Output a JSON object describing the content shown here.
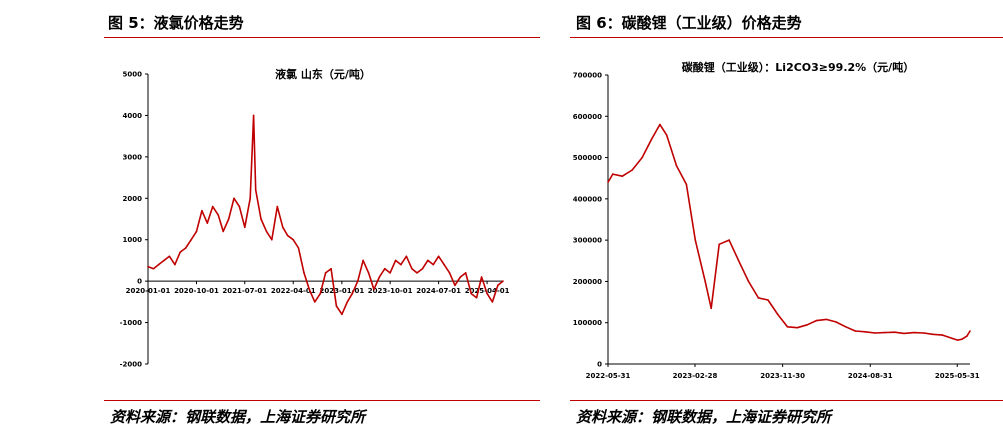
{
  "left": {
    "figure_title": "图 5：液氯价格走势",
    "source": "资料来源：钢联数据，上海证券研究所"
  },
  "right": {
    "figure_title": "图 6：碳酸锂（工业级）价格走势",
    "source": "资料来源：钢联数据，上海证券研究所"
  },
  "colors": {
    "line": "#c00000",
    "rule": "#c00000",
    "axis": "#000000"
  },
  "chart_data": [
    {
      "type": "line",
      "title": "液氯 山东（元/吨）",
      "xlabel": "",
      "ylabel": "",
      "ylim": [
        -2000,
        5000
      ],
      "yticks": [
        -2000,
        -1000,
        0,
        1000,
        2000,
        3000,
        4000,
        5000
      ],
      "ytick_labels": [
        "-2000",
        "-1000",
        "0",
        "1000",
        "2000",
        "3000",
        "4000",
        "5000"
      ],
      "xlim": [
        "2020-01-01",
        "2025-06-30"
      ],
      "xticks": [
        "2020-01-01",
        "2020-10-01",
        "2021-07-01",
        "2022-04-01",
        "2023-01-01",
        "2023-10-01",
        "2024-07-01",
        "2025-04-01"
      ],
      "xtick_labels": [
        "2020-01-01",
        "2020-10-01",
        "2021-07-01",
        "2022-04-01",
        "2023-01-01",
        "2023-10-01",
        "2024-07-01",
        "2025-04-01"
      ],
      "grid": false,
      "series": [
        {
          "x": [
            "2020-01-01",
            "2020-02-01",
            "2020-03-01",
            "2020-04-01",
            "2020-05-01",
            "2020-06-01",
            "2020-07-01",
            "2020-08-01",
            "2020-09-01",
            "2020-10-01",
            "2020-11-01",
            "2020-12-01",
            "2021-01-01",
            "2021-02-01",
            "2021-03-01",
            "2021-04-01",
            "2021-05-01",
            "2021-06-01",
            "2021-07-01",
            "2021-08-01",
            "2021-08-20",
            "2021-09-01",
            "2021-10-01",
            "2021-11-01",
            "2021-12-01",
            "2022-01-01",
            "2022-02-01",
            "2022-03-01",
            "2022-04-01",
            "2022-05-01",
            "2022-06-01",
            "2022-07-01",
            "2022-08-01",
            "2022-09-01",
            "2022-10-01",
            "2022-11-01",
            "2022-12-01",
            "2023-01-01",
            "2023-02-01",
            "2023-03-01",
            "2023-04-01",
            "2023-05-01",
            "2023-06-01",
            "2023-07-01",
            "2023-08-01",
            "2023-09-01",
            "2023-10-01",
            "2023-11-01",
            "2023-12-01",
            "2024-01-01",
            "2024-02-01",
            "2024-03-01",
            "2024-04-01",
            "2024-05-01",
            "2024-06-01",
            "2024-07-01",
            "2024-08-01",
            "2024-09-01",
            "2024-10-01",
            "2024-11-01",
            "2024-12-01",
            "2025-01-01",
            "2025-02-01",
            "2025-03-01",
            "2025-04-01",
            "2025-05-01",
            "2025-06-01",
            "2025-06-30"
          ],
          "values": [
            350,
            300,
            400,
            500,
            600,
            400,
            700,
            800,
            1000,
            1200,
            1700,
            1400,
            1800,
            1600,
            1200,
            1500,
            2000,
            1800,
            1300,
            2000,
            4000,
            2200,
            1500,
            1200,
            1000,
            1800,
            1300,
            1100,
            1000,
            800,
            200,
            -200,
            -500,
            -300,
            200,
            300,
            -600,
            -800,
            -500,
            -300,
            0,
            500,
            200,
            -200,
            100,
            300,
            200,
            500,
            400,
            600,
            300,
            200,
            300,
            500,
            400,
            600,
            400,
            200,
            -100,
            100,
            200,
            -300,
            -400,
            100,
            -300,
            -500,
            -100,
            0
          ]
        }
      ]
    },
    {
      "type": "line",
      "title": "碳酸锂（工业级）：Li2CO3≥99.2%（元/吨）",
      "xlabel": "",
      "ylabel": "",
      "ylim": [
        0,
        700000
      ],
      "yticks": [
        0,
        100000,
        200000,
        300000,
        400000,
        500000,
        600000,
        700000
      ],
      "ytick_labels": [
        "0",
        "100000",
        "200000",
        "300000",
        "400000",
        "500000",
        "600000",
        "700000"
      ],
      "xlim": [
        "2022-05-31",
        "2025-07-10"
      ],
      "xticks": [
        "2022-05-31",
        "2023-02-28",
        "2023-11-30",
        "2024-08-31",
        "2025-05-31"
      ],
      "xtick_labels": [
        "2022-05-31",
        "2023-02-28",
        "2023-11-30",
        "2024-08-31",
        "2025-05-31"
      ],
      "grid": false,
      "series": [
        {
          "x": [
            "2022-05-31",
            "2022-06-15",
            "2022-07-15",
            "2022-08-15",
            "2022-09-15",
            "2022-10-15",
            "2022-11-10",
            "2022-12-01",
            "2023-01-01",
            "2023-02-01",
            "2023-03-01",
            "2023-04-01",
            "2023-04-20",
            "2023-05-15",
            "2023-06-15",
            "2023-07-15",
            "2023-08-15",
            "2023-09-15",
            "2023-10-15",
            "2023-11-15",
            "2023-12-15",
            "2024-01-15",
            "2024-02-15",
            "2024-03-15",
            "2024-04-15",
            "2024-05-15",
            "2024-06-15",
            "2024-07-15",
            "2024-08-15",
            "2024-09-15",
            "2024-10-15",
            "2024-11-15",
            "2024-12-15",
            "2025-01-15",
            "2025-02-15",
            "2025-03-15",
            "2025-04-15",
            "2025-05-15",
            "2025-06-01",
            "2025-06-15",
            "2025-07-01",
            "2025-07-10"
          ],
          "values": [
            440000,
            460000,
            455000,
            470000,
            500000,
            545000,
            580000,
            555000,
            480000,
            435000,
            300000,
            200000,
            135000,
            290000,
            300000,
            250000,
            200000,
            160000,
            155000,
            120000,
            90000,
            88000,
            95000,
            105000,
            108000,
            102000,
            90000,
            80000,
            78000,
            75000,
            76000,
            77000,
            74000,
            76000,
            75000,
            72000,
            70000,
            62000,
            58000,
            60000,
            68000,
            80000
          ]
        }
      ]
    }
  ]
}
